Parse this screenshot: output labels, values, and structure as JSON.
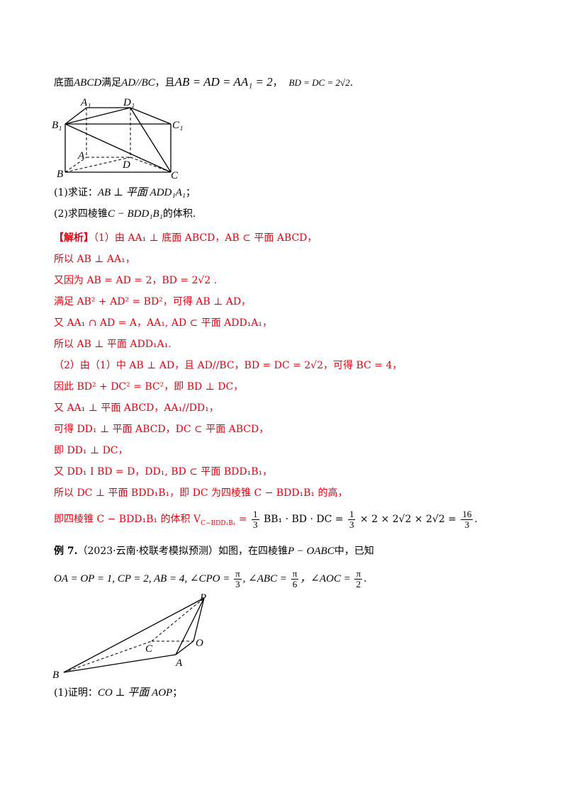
{
  "intro": {
    "prefix": "底面",
    "abcd": "ABCD",
    "satisfy": "满足",
    "parallel": "AD//BC",
    "and": "，且",
    "eq1": "AB = AD = AA₁ = 2",
    "sep": "，",
    "eq2": "BD = DC = 2√2",
    "end": "."
  },
  "figure1": {
    "labels": [
      "A₁",
      "D₁",
      "B₁",
      "C₁",
      "A",
      "D",
      "B",
      "C"
    ]
  },
  "questions": {
    "q1_prefix": "(1)求证：",
    "q1_math": "AB ⊥ 平面 ADD₁A₁",
    "q1_end": "；",
    "q2_prefix": "(2)求四棱锥",
    "q2_math": "C − BDD₁B₁",
    "q2_end": "的体积."
  },
  "solution": {
    "tag": "【解析】",
    "l1": "（1）由 AA₁ ⊥ 底面 ABCD，AB ⊂ 平面 ABCD，",
    "l2": "所以 AB ⊥ AA₁，",
    "l3": "又因为 AB = AD = 2，BD = 2√2 .",
    "l4": "满足 AB² + AD² = BD²，可得 AB ⊥ AD，",
    "l5": "又 AA₁ ∩ AD = A，AA₁, AD ⊂ 平面 ADD₁A₁，",
    "l6": "所以 AB ⊥ 平面 ADD₁A₁.",
    "l7": "（2）由（1）中 AB ⊥ AD，且 AD//BC，BD = DC = 2√2，可得 BC = 4，",
    "l8": "因此 BD² + DC² = BC²，即 BD ⊥ DC，",
    "l9": "又 AA₁ ⊥ 平面 ABCD，AA₁//DD₁，",
    "l10": "可得 DD₁ ⊥ 平面 ABCD，DC ⊂ 平面 ABCD，",
    "l11": "即 DD₁ ⊥ DC，",
    "l12": "又 DD₁ I BD = D，DD₁, BD ⊂ 平面 BDD₁B₁，",
    "l13": "所以 DC ⊥ 平面 BDD₁B₁，即 DC 为四棱锥 C − BDD₁B₁ 的高，",
    "l14_prefix": "即四棱锥 C − BDD₁B₁ 的体积 V",
    "l14_sub": "C−BDD₁B₁",
    "l14_a": " = ",
    "l14_f1n": "1",
    "l14_f1d": "3",
    "l14_b": "BB₁ · BD · DC = ",
    "l14_f2n": "1",
    "l14_f2d": "3",
    "l14_c": "× 2 × 2√2 × 2√2 = ",
    "l14_f3n": "16",
    "l14_f3d": "3",
    "l14_end": "."
  },
  "example7": {
    "label": "例 7.",
    "source": "（2023·云南·校联考模拟预测）如图，在四棱锥",
    "pyramid": "P − OABC",
    "tail": "中，已知",
    "cond_a": "OA = OP = 1, CP = 2, AB = 4, ∠CPO = ",
    "f1n": "π",
    "f1d": "3",
    "cond_b": ", ∠ABC = ",
    "f2n": "π",
    "f2d": "6",
    "cond_c": "，∠AOC = ",
    "f3n": "π",
    "f3d": "2",
    "cond_end": ".",
    "labels": [
      "P",
      "C",
      "O",
      "A",
      "B"
    ],
    "q1_prefix": "(1)证明：",
    "q1_math": "CO ⊥ 平面 AOP",
    "q1_end": "；"
  }
}
